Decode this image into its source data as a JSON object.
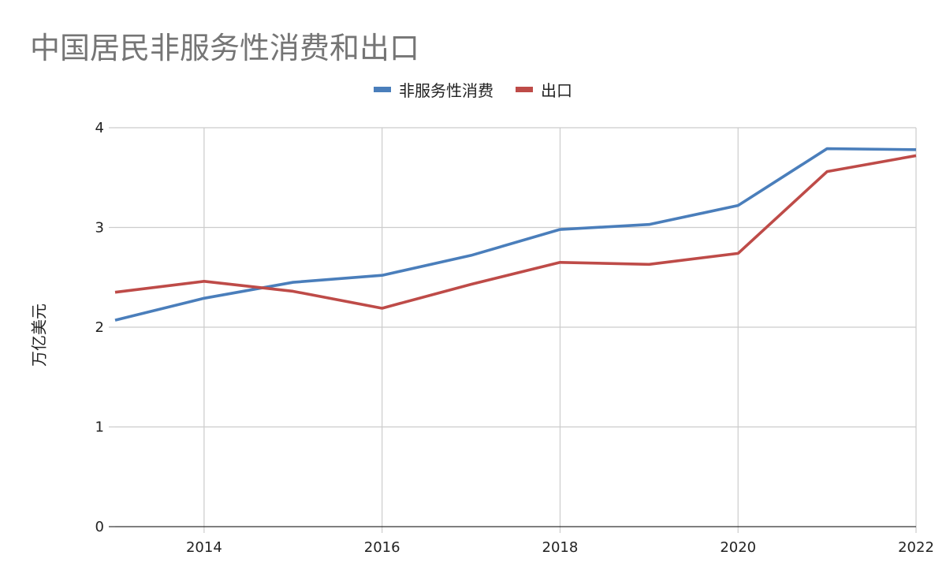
{
  "chart_data": {
    "type": "line",
    "title": "中国居民非服务性消费和出口",
    "xlabel": "",
    "ylabel": "万亿美元",
    "x": [
      2013,
      2014,
      2015,
      2016,
      2017,
      2018,
      2019,
      2020,
      2021,
      2022
    ],
    "xlim": [
      2013,
      2022
    ],
    "xticks": [
      2014,
      2016,
      2018,
      2020,
      2022
    ],
    "ylim": [
      0,
      4
    ],
    "yticks": [
      0,
      1,
      2,
      3,
      4
    ],
    "grid": true,
    "legend_position": "top-center",
    "series": [
      {
        "name": "非服务性消费",
        "color": "#4a7ebb",
        "values": [
          2.07,
          2.29,
          2.45,
          2.52,
          2.72,
          2.98,
          3.03,
          3.22,
          3.79,
          3.78
        ]
      },
      {
        "name": "出口",
        "color": "#be4b48",
        "values": [
          2.35,
          2.46,
          2.36,
          2.19,
          2.43,
          2.65,
          2.63,
          2.74,
          3.56,
          3.72
        ]
      }
    ]
  }
}
